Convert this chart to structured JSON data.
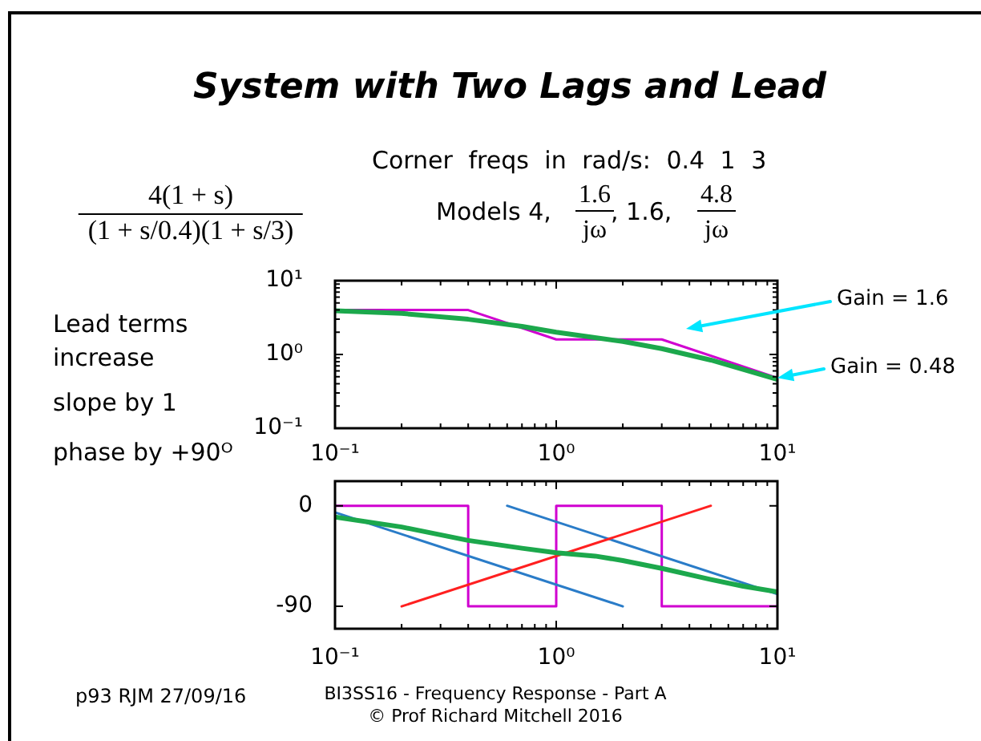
{
  "chart_data": [
    {
      "type": "line",
      "title": "System with Two Lags and Lead",
      "annotations": [
        "Corner freqs in rad/s: 0.4 1 3",
        "4(1 + s)",
        "(1 + s/0.4)(1 + s/3)",
        "Models 4,",
        "1.6",
        "jω",
        ", 1.6,",
        "4.8",
        "jω",
        "Lead terms increase",
        "slope by 1",
        "phase by +90ᴼ",
        "Gain = 1.6",
        {
          "text": "Gain = 0.48",
          "x": 10,
          "y": 0.48
        }
      ],
      "series": [
        {
          "color": "#d000d0",
          "x": [
            0.1,
            0.4,
            1,
            3,
            10
          ],
          "values": [
            4,
            4,
            1.6,
            1.6,
            0.48
          ]
        },
        {
          "color": "#1ca84c",
          "x": [
            0.1,
            0.2,
            0.4,
            0.7,
            1,
            2,
            3,
            5,
            10
          ],
          "values": [
            3.9,
            3.6,
            3.0,
            2.4,
            2.0,
            1.5,
            1.2,
            0.84,
            0.46
          ]
        }
      ],
      "xlim": [
        0.1,
        10
      ],
      "ylim": [
        0.1,
        10
      ],
      "xticks": [
        {
          "value": 0.1,
          "label": "10⁻¹"
        },
        {
          "value": 0.2,
          "label": null
        },
        {
          "value": 0.3,
          "label": null
        },
        {
          "value": 0.4,
          "label": null
        },
        {
          "value": 0.5,
          "label": null
        },
        {
          "value": 0.6,
          "label": null
        },
        {
          "value": 0.7,
          "label": null
        },
        {
          "value": 0.8,
          "label": null
        },
        {
          "value": 0.9,
          "label": null
        },
        {
          "value": 1,
          "label": "10⁰"
        },
        {
          "value": 2,
          "label": null
        },
        {
          "value": 3,
          "label": null
        },
        {
          "value": 4,
          "label": null
        },
        {
          "value": 5,
          "label": null
        },
        {
          "value": 6,
          "label": null
        },
        {
          "value": 7,
          "label": null
        },
        {
          "value": 8,
          "label": null
        },
        {
          "value": 9,
          "label": null
        },
        {
          "value": 10,
          "label": "10¹"
        }
      ],
      "yticks": [
        {
          "value": 0.1,
          "label": "10⁻¹"
        },
        {
          "value": 0.2,
          "label": null
        },
        {
          "value": 0.3,
          "label": null
        },
        {
          "value": 0.4,
          "label": null
        },
        {
          "value": 0.5,
          "label": null
        },
        {
          "value": 0.6,
          "label": null
        },
        {
          "value": 0.7,
          "label": null
        },
        {
          "value": 0.8,
          "label": null
        },
        {
          "value": 0.9,
          "label": null
        },
        {
          "value": 1,
          "label": "10⁰"
        },
        {
          "value": 2,
          "label": null
        },
        {
          "value": 3,
          "label": null
        },
        {
          "value": 4,
          "label": null
        },
        {
          "value": 5,
          "label": null
        },
        {
          "value": 6,
          "label": null
        },
        {
          "value": 7,
          "label": null
        },
        {
          "value": 8,
          "label": null
        },
        {
          "value": 9,
          "label": null
        },
        {
          "value": 10,
          "label": "10¹"
        }
      ],
      "log": "xy"
    },
    {
      "type": "line",
      "annotations": [
        "p93 RJM 27/09/16",
        "BI3SS16 - Frequency Response - Part A",
        "© Prof Richard Mitchell 2016"
      ],
      "series": [
        {
          "type": "step",
          "color": "#d000d0",
          "x": [
            0.1,
            0.4,
            1,
            3,
            10
          ],
          "values": [
            0,
            -90,
            0,
            -90,
            -90
          ]
        },
        {
          "color": "#2a7cc8",
          "x": [
            0.1,
            2
          ],
          "values": [
            -6,
            -90
          ]
        },
        {
          "color": "#2a7cc8",
          "x": [
            0.6,
            10
          ],
          "values": [
            0,
            -79
          ]
        },
        {
          "color": "#ff2020",
          "x": [
            0.2,
            5
          ],
          "values": [
            -90,
            0
          ]
        },
        {
          "color": "#1ca84c",
          "x": [
            0.1,
            0.2,
            0.4,
            0.7,
            1,
            1.5,
            2,
            3,
            5,
            7,
            10
          ],
          "values": [
            -10,
            -19,
            -31,
            -38,
            -42,
            -45,
            -49,
            -56,
            -66,
            -72,
            -77
          ]
        }
      ],
      "xlim": [
        0.1,
        10
      ],
      "ylim": [
        -110,
        22
      ],
      "xticks": [
        {
          "value": 0.1,
          "label": "10⁻¹"
        },
        {
          "value": 0.2,
          "label": null
        },
        {
          "value": 0.3,
          "label": null
        },
        {
          "value": 0.4,
          "label": null
        },
        {
          "value": 0.5,
          "label": null
        },
        {
          "value": 0.6,
          "label": null
        },
        {
          "value": 0.7,
          "label": null
        },
        {
          "value": 0.8,
          "label": null
        },
        {
          "value": 0.9,
          "label": null
        },
        {
          "value": 1,
          "label": "10⁰"
        },
        {
          "value": 2,
          "label": null
        },
        {
          "value": 3,
          "label": null
        },
        {
          "value": 4,
          "label": null
        },
        {
          "value": 5,
          "label": null
        },
        {
          "value": 6,
          "label": null
        },
        {
          "value": 7,
          "label": null
        },
        {
          "value": 8,
          "label": null
        },
        {
          "value": 9,
          "label": null
        },
        {
          "value": 10,
          "label": "10¹"
        }
      ],
      "yticks": [
        0,
        -90
      ],
      "log": "x"
    }
  ]
}
